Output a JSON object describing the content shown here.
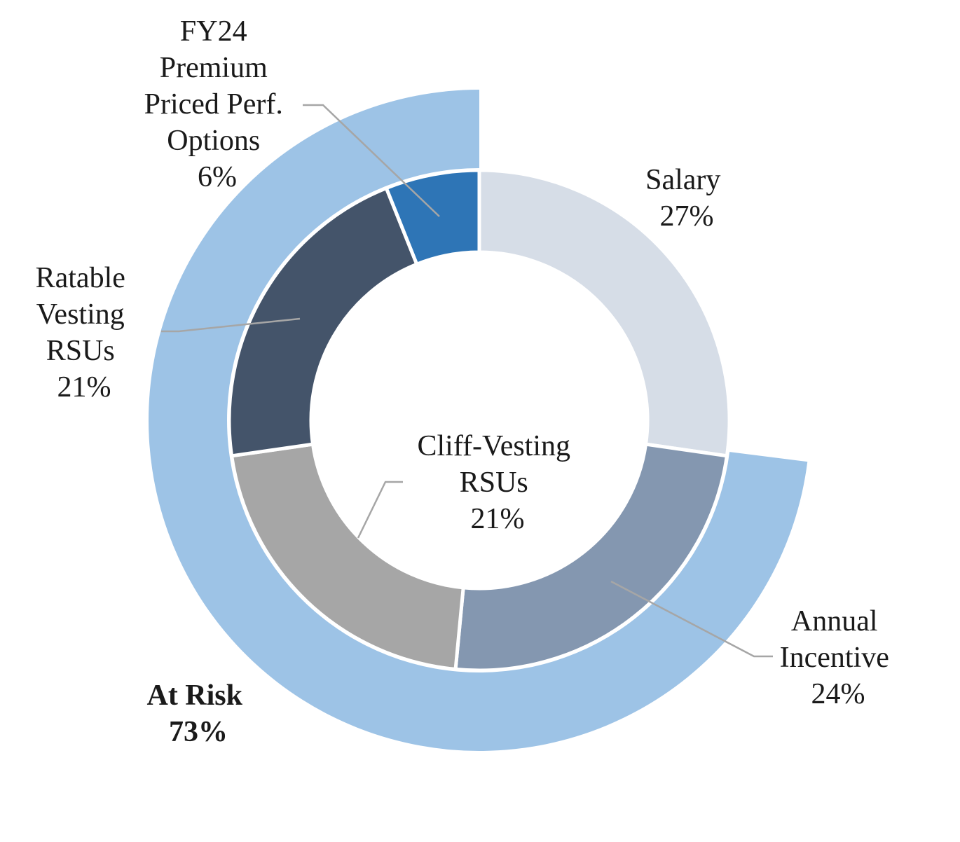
{
  "chart_data": {
    "type": "donut",
    "inner_ring": {
      "slices": [
        {
          "label_lines": [
            "Salary"
          ],
          "value": 27,
          "value_label": "27%",
          "color": "#d6dde7"
        },
        {
          "label_lines": [
            "Annual",
            "Incentive"
          ],
          "value": 24,
          "value_label": "24%",
          "color": "#8497b0"
        },
        {
          "label_lines": [
            "Cliff-Vesting",
            "RSUs"
          ],
          "value": 21,
          "value_label": "21%",
          "color": "#a6a6a6"
        },
        {
          "label_lines": [
            "Ratable",
            "Vesting",
            "RSUs"
          ],
          "value": 21,
          "value_label": "21%",
          "color": "#44546a"
        },
        {
          "label_lines": [
            "FY24",
            "Premium",
            "Priced Perf.",
            "Options"
          ],
          "value": 6,
          "value_label": "6%",
          "color": "#2e75b6"
        }
      ]
    },
    "outer_ring": {
      "slices": [
        {
          "label_lines": [
            "At Risk"
          ],
          "value": 73,
          "value_label": "73%",
          "color": "#9dc3e6",
          "label_bold": true
        }
      ]
    },
    "start_angle_deg": 0,
    "direction": "clockwise",
    "colors": {
      "separator": "#ffffff",
      "leader_line": "#a6a6a6",
      "text": "#1a1a1a"
    }
  }
}
